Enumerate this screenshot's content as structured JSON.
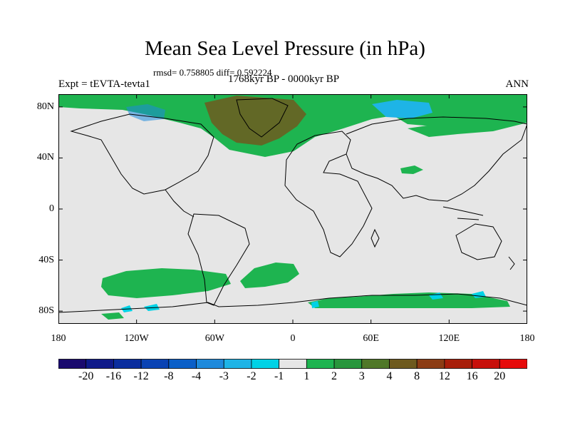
{
  "title": "Mean Sea Level Pressure (in hPa)",
  "stats": "rmsd= 0.758805 diff= 0.592224",
  "experiment": "Expt = tEVTA-tevta1",
  "period": "1768kyr BP - 0000kyr BP",
  "season": "ANN",
  "lat_ticks": [
    {
      "label": "80N",
      "lat": 80
    },
    {
      "label": "40N",
      "lat": 40
    },
    {
      "label": "0",
      "lat": 0
    },
    {
      "label": "40S",
      "lat": -40
    },
    {
      "label": "80S",
      "lat": -80
    }
  ],
  "lon_ticks": [
    {
      "label": "180",
      "lon": -180
    },
    {
      "label": "120W",
      "lon": -120
    },
    {
      "label": "60W",
      "lon": -60
    },
    {
      "label": "0",
      "lon": 0
    },
    {
      "label": "60E",
      "lon": 60
    },
    {
      "label": "120E",
      "lon": 120
    },
    {
      "label": "180",
      "lon": 180
    }
  ],
  "colorbar": {
    "colors": [
      "#1a0a6e",
      "#0f1a8a",
      "#0a2d9e",
      "#0a43b4",
      "#0a5fc8",
      "#1e8adc",
      "#1eb4e6",
      "#00d2e6",
      "#e6e6e6",
      "#1eb450",
      "#28963c",
      "#507828",
      "#6e5a1e",
      "#8c3c14",
      "#a81e0a",
      "#c80f0a",
      "#e60a0a"
    ],
    "labels": [
      "-20",
      "-16",
      "-12",
      "-8",
      "-4",
      "-3",
      "-2",
      "-1",
      "1",
      "2",
      "3",
      "4",
      "8",
      "12",
      "16",
      "20"
    ],
    "background_color": "#e6e6e6",
    "land_outline_color": "#000000"
  },
  "anomaly_regions": [
    {
      "name": "arctic-north-america",
      "level": "2"
    },
    {
      "name": "greenland-north-atlantic",
      "level": "3"
    },
    {
      "name": "canadian-archipelago",
      "level": "-1"
    },
    {
      "name": "siberia-arctic",
      "level": "-2"
    },
    {
      "name": "north-eurasia",
      "level": "2"
    },
    {
      "name": "southern-ocean-pacific",
      "level": "2"
    },
    {
      "name": "southern-ocean-atlantic",
      "level": "2"
    },
    {
      "name": "antarctic-coast",
      "level": "2"
    },
    {
      "name": "central-asia",
      "level": "2"
    }
  ]
}
